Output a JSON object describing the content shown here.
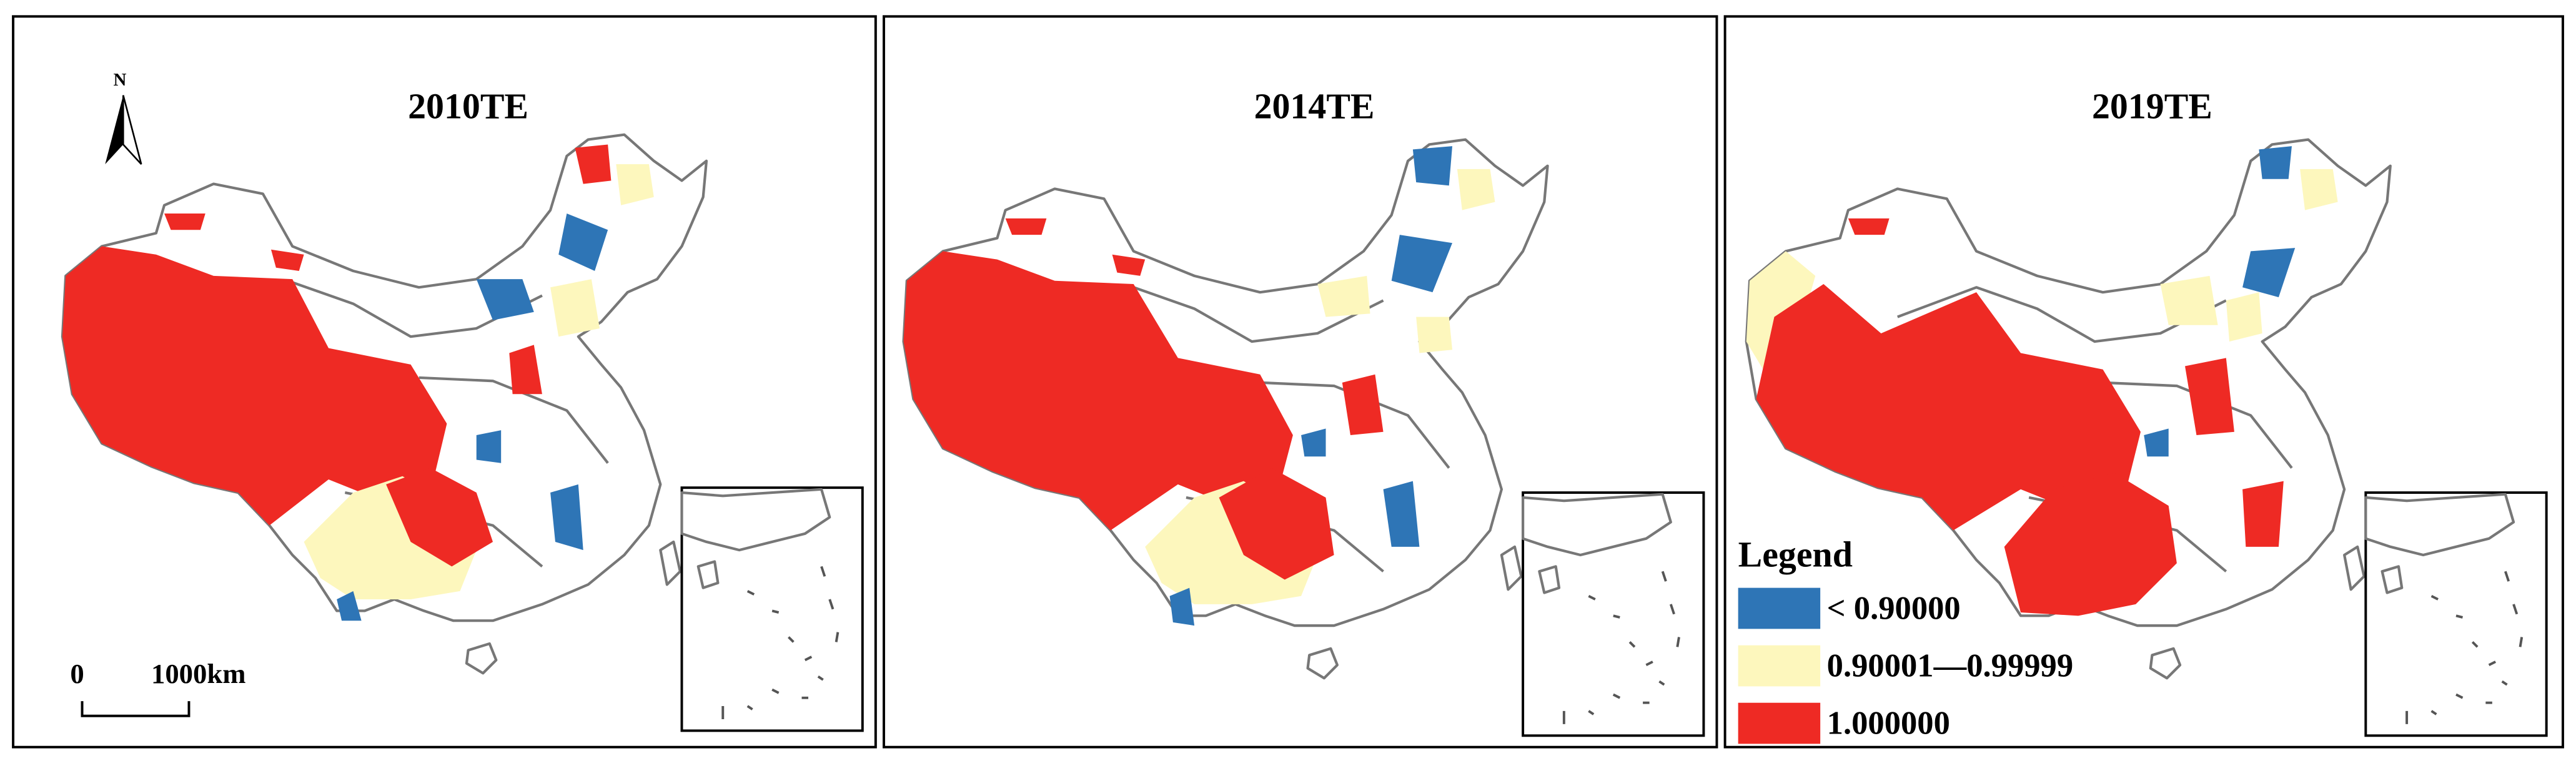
{
  "panels": [
    {
      "title": "2010TE"
    },
    {
      "title": "2014TE"
    },
    {
      "title": "2019TE"
    }
  ],
  "north_label": "N",
  "scale_bar": {
    "start": "0",
    "end": "1000km"
  },
  "legend": {
    "title": "Legend",
    "items": [
      {
        "label": "< 0.90000",
        "color": "#2e75b6"
      },
      {
        "label": "0.90001—0.99999",
        "color": "#fdf7bd"
      },
      {
        "label": "1.000000",
        "color": "#ee2a24"
      }
    ]
  }
}
